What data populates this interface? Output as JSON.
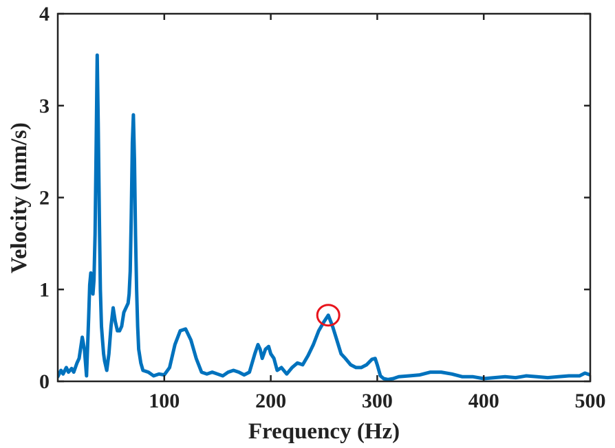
{
  "chart_data": {
    "type": "line",
    "title": "",
    "xlabel": "Frequency (Hz)",
    "ylabel": "Velocity (mm/s)",
    "xlim": [
      0,
      500
    ],
    "ylim": [
      0,
      4
    ],
    "xticks": [
      100,
      200,
      300,
      400,
      500
    ],
    "yticks": [
      0,
      1,
      2,
      3,
      4
    ],
    "grid": false,
    "legend": "none",
    "line_color": "#0072BD",
    "highlight_color": "#E8141C",
    "annotations": [
      {
        "type": "circle-marker",
        "x": 254,
        "y": 0.72
      }
    ],
    "series": [
      {
        "x": [
          0,
          3,
          5,
          8,
          10,
          13,
          15,
          18,
          20,
          23,
          25,
          27,
          29,
          30,
          31,
          32,
          33,
          34,
          35,
          36,
          37,
          38,
          39,
          40,
          41,
          42,
          43,
          44,
          46,
          48,
          50,
          52,
          54,
          56,
          58,
          60,
          62,
          64,
          66,
          67,
          68,
          69,
          70,
          71,
          72,
          73,
          74,
          75,
          76,
          78,
          80,
          85,
          90,
          95,
          100,
          105,
          110,
          115,
          120,
          125,
          130,
          135,
          140,
          145,
          150,
          155,
          160,
          165,
          170,
          175,
          180,
          185,
          188,
          190,
          192,
          195,
          198,
          200,
          203,
          206,
          210,
          215,
          220,
          225,
          230,
          235,
          240,
          245,
          250,
          254,
          258,
          262,
          266,
          270,
          275,
          280,
          285,
          290,
          295,
          298,
          300,
          303,
          306,
          310,
          315,
          320,
          330,
          340,
          350,
          360,
          370,
          380,
          390,
          400,
          410,
          420,
          430,
          440,
          450,
          460,
          470,
          480,
          490,
          495,
          500
        ],
        "y": [
          0.05,
          0.12,
          0.08,
          0.15,
          0.1,
          0.14,
          0.1,
          0.2,
          0.25,
          0.48,
          0.35,
          0.06,
          0.7,
          1.05,
          1.18,
          1.05,
          0.95,
          1.1,
          1.6,
          2.5,
          3.55,
          2.8,
          1.8,
          1.0,
          0.6,
          0.45,
          0.3,
          0.22,
          0.12,
          0.3,
          0.6,
          0.8,
          0.65,
          0.55,
          0.55,
          0.6,
          0.75,
          0.8,
          0.85,
          0.95,
          1.2,
          1.8,
          2.6,
          2.9,
          2.4,
          1.6,
          1.0,
          0.6,
          0.35,
          0.2,
          0.12,
          0.1,
          0.06,
          0.08,
          0.07,
          0.15,
          0.4,
          0.55,
          0.57,
          0.45,
          0.25,
          0.1,
          0.08,
          0.1,
          0.08,
          0.06,
          0.1,
          0.12,
          0.1,
          0.07,
          0.1,
          0.3,
          0.4,
          0.35,
          0.25,
          0.35,
          0.38,
          0.3,
          0.25,
          0.12,
          0.15,
          0.08,
          0.15,
          0.2,
          0.18,
          0.28,
          0.4,
          0.55,
          0.65,
          0.72,
          0.6,
          0.45,
          0.3,
          0.25,
          0.18,
          0.15,
          0.15,
          0.18,
          0.24,
          0.25,
          0.18,
          0.06,
          0.03,
          0.02,
          0.03,
          0.05,
          0.06,
          0.07,
          0.1,
          0.1,
          0.08,
          0.05,
          0.05,
          0.03,
          0.04,
          0.05,
          0.04,
          0.06,
          0.05,
          0.04,
          0.05,
          0.06,
          0.06,
          0.09,
          0.07
        ]
      }
    ]
  }
}
